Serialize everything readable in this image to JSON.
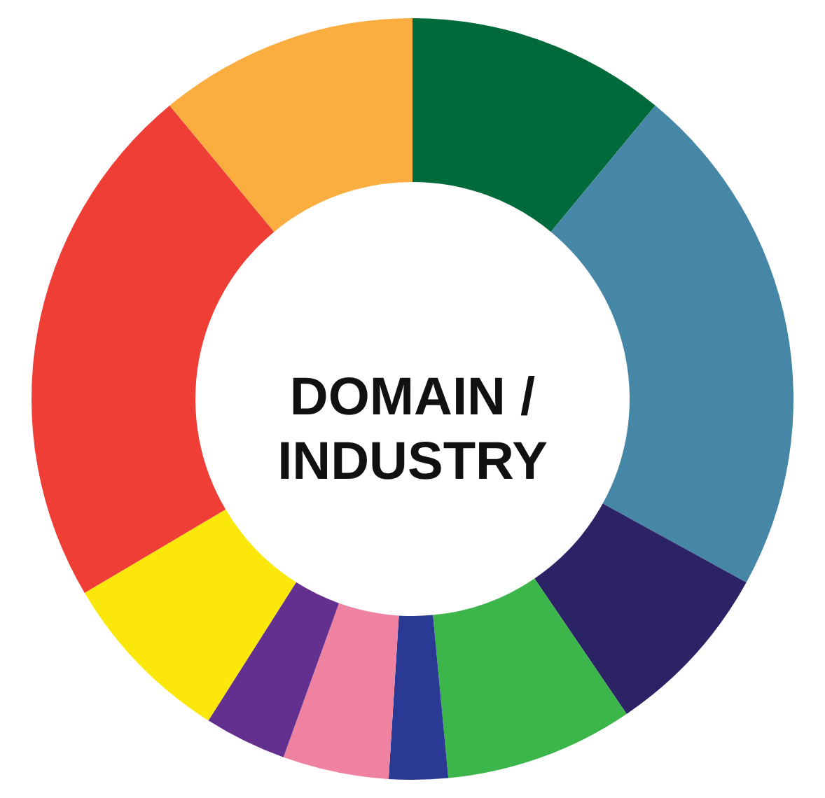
{
  "chart_data": {
    "type": "donut",
    "title": "DOMAIN / INDUSTRY",
    "categories": [
      null,
      null,
      null,
      null,
      null,
      null,
      null,
      null,
      null,
      null
    ],
    "values": [
      11,
      22,
      7.5,
      8,
      2.5,
      4.5,
      3.5,
      7.5,
      22.5,
      11
    ],
    "colors": [
      "#006a3a",
      "#4686a6",
      "#2b2366",
      "#3cb54a",
      "#2a3a94",
      "#ee82a0",
      "#63308f",
      "#fbe80a",
      "#ee3e36",
      "#fbad40"
    ]
  }
}
